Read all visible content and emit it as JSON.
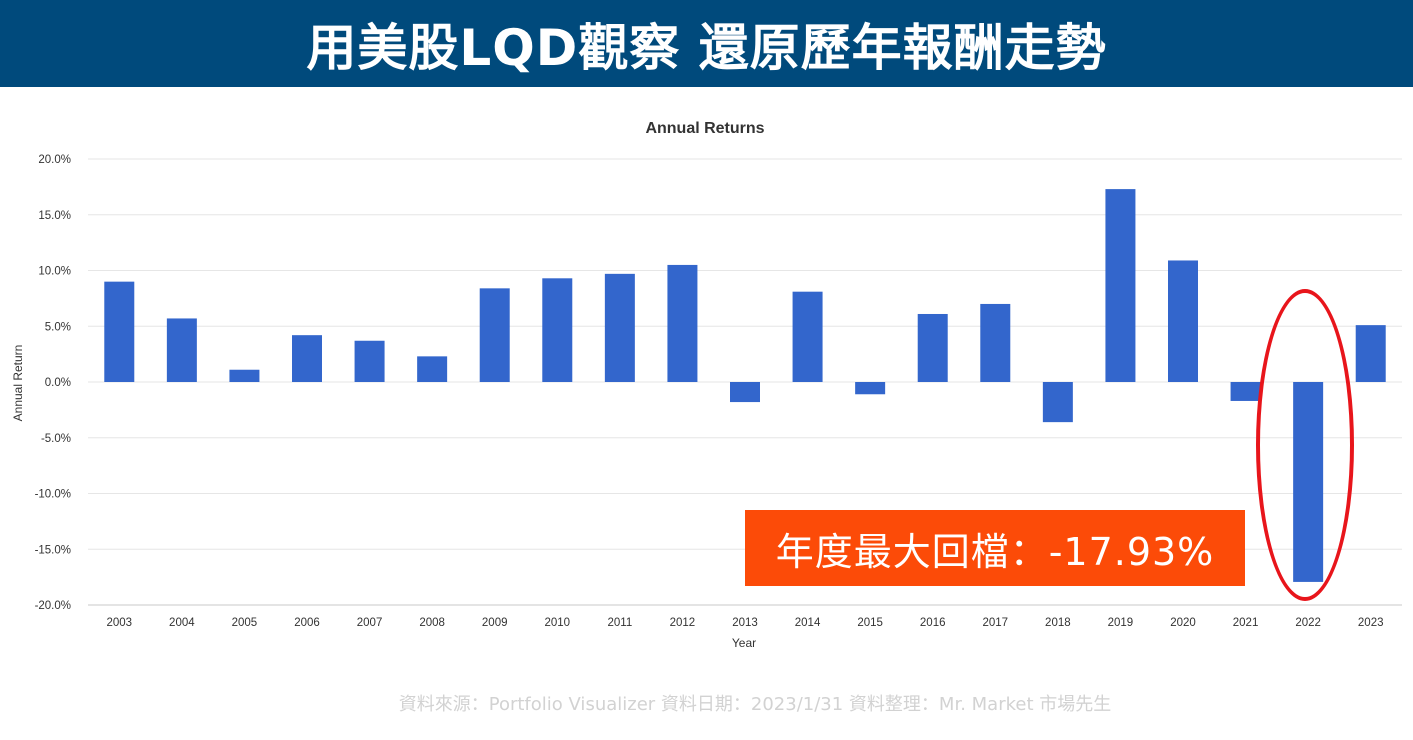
{
  "banner": {
    "title": "用美股LQD觀察 還原歷年報酬走勢"
  },
  "callout": {
    "text": "年度最大回檔：-17.93%"
  },
  "source_note": "資料來源：Portfolio Visualizer 資料日期：2023/1/31 資料整理：Mr. Market 市場先生",
  "colors": {
    "banner": "#004a7c",
    "bar": "#3366cc",
    "callout": "#fc4b08",
    "ring": "#e8151b"
  },
  "chart_data": {
    "type": "bar",
    "title": "Annual Returns",
    "xlabel": "Year",
    "ylabel": "Annual Return",
    "ylim": [
      -20,
      20
    ],
    "yticks": [
      "20.0%",
      "15.0%",
      "10.0%",
      "5.0%",
      "0.0%",
      "-5.0%",
      "-10.0%",
      "-15.0%",
      "-20.0%"
    ],
    "grid": true,
    "highlight": "2022",
    "categories": [
      "2003",
      "2004",
      "2005",
      "2006",
      "2007",
      "2008",
      "2009",
      "2010",
      "2011",
      "2012",
      "2013",
      "2014",
      "2015",
      "2016",
      "2017",
      "2018",
      "2019",
      "2020",
      "2021",
      "2022",
      "2023"
    ],
    "values": [
      9.0,
      5.7,
      1.1,
      4.2,
      3.7,
      2.3,
      8.4,
      9.3,
      9.7,
      10.5,
      -1.8,
      8.1,
      -1.1,
      6.1,
      7.0,
      -3.6,
      17.3,
      10.9,
      -1.7,
      -17.93,
      5.1
    ]
  }
}
